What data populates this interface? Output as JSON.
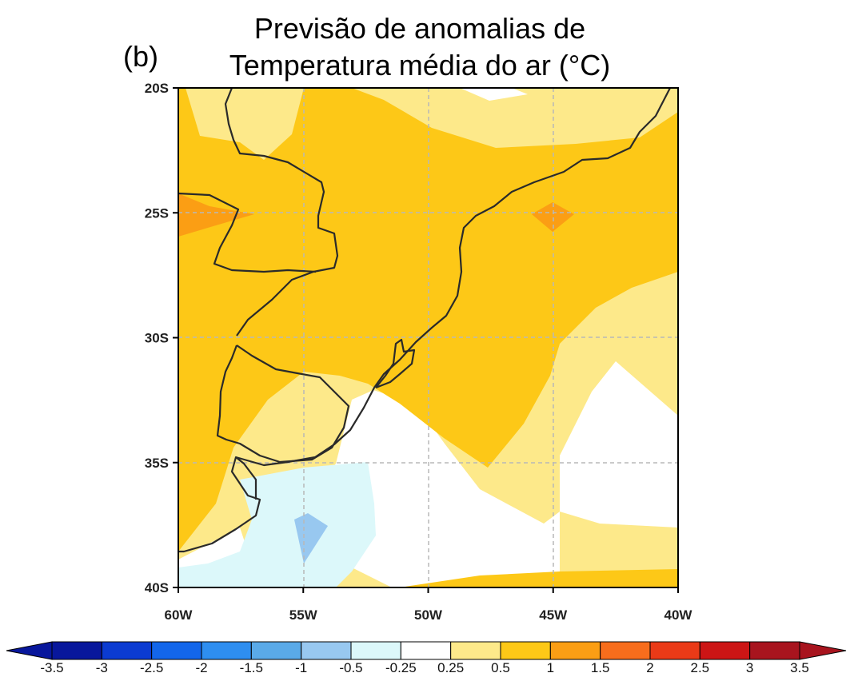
{
  "figure": {
    "panel_label": "(b)",
    "title_line1": "Previsão de anomalias de",
    "title_line2": "Temperatura média do ar (°C)"
  },
  "axes": {
    "lon_ticks": [
      "60W",
      "55W",
      "50W",
      "45W",
      "40W"
    ],
    "lat_ticks": [
      "20S",
      "25S",
      "30S",
      "35S",
      "40S"
    ],
    "lon_range": [
      -60,
      -40
    ],
    "lat_range": [
      -40,
      -20
    ],
    "grid": "dashed gray at 5° intervals"
  },
  "colorbar": {
    "labels": [
      "-3.5",
      "-3",
      "-2.5",
      "-2",
      "-1.5",
      "-1",
      "-0.5",
      "-0.25",
      "0.25",
      "0.5",
      "1",
      "1.5",
      "2",
      "2.5",
      "3",
      "3.5"
    ],
    "colors": [
      "#08179c",
      "#0b3bd1",
      "#1366ea",
      "#2e8ef0",
      "#5aaae8",
      "#98c8f0",
      "#dcf8fa",
      "#ffffff",
      "#fde98a",
      "#fdc817",
      "#fb9e14",
      "#f76d1c",
      "#ea3a17",
      "#cc1515",
      "#a8141e"
    ]
  },
  "legend": {
    "colors": {
      "land_border": "#2a2a2a",
      "level_025_05": "#fde98a",
      "level_05_1": "#fdc817",
      "level_1_15": "#fb9e14",
      "level_neg05_neg025": "#dcf8fa",
      "level_neg1_neg05": "#98c8f0"
    }
  }
}
